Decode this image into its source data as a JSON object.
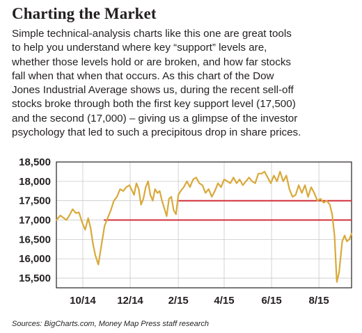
{
  "heading": "Charting the Market",
  "paragraph_lines": [
    "Simple technical-analysis charts like this one are great tools",
    "to help you understand where key “support” levels are,",
    "whether those levels hold or are broken, and how far stocks",
    "fall when that when that occurs. As this chart of the Dow",
    "Jones Industrial Average shows us, during the recent sell-off",
    "stocks broke through both the first key support level (17,500)",
    "and the second (17,000) – giving us a glimpse of the investor",
    "psychology that led to such a precipitous drop in share prices."
  ],
  "source": "Sources: BigCharts.com, Money Map Press staff research",
  "colors": {
    "line": "#d9a93a",
    "support": "#d32f3a",
    "grid": "#c9c9c9",
    "text": "#231f20"
  },
  "chart_data": {
    "type": "line",
    "ylim": [
      15250,
      18500
    ],
    "xlim": [
      "2014-08-28",
      "2015-09-12"
    ],
    "yticks": [
      15500,
      16000,
      16500,
      17000,
      17500,
      18000,
      18500
    ],
    "ytick_labels": [
      "15,500",
      "16,000",
      "16,500",
      "17,000",
      "17,500",
      "18,000",
      "18,500"
    ],
    "xticks": [
      {
        "date": "2014-10-01",
        "label": "10/14"
      },
      {
        "date": "2014-12-01",
        "label": "12/14"
      },
      {
        "date": "2015-02-01",
        "label": "2/15"
      },
      {
        "date": "2015-04-01",
        "label": "4/15"
      },
      {
        "date": "2015-06-01",
        "label": "6/15"
      },
      {
        "date": "2015-08-01",
        "label": "8/15"
      }
    ],
    "grid": true,
    "support_levels": [
      {
        "value": 17500,
        "from": "2015-02-01"
      },
      {
        "value": 17000,
        "from": "2014-10-28"
      }
    ],
    "series": [
      {
        "x": [
          "2014-08-28",
          "2014-09-02",
          "2014-09-06",
          "2014-09-10",
          "2014-09-14",
          "2014-09-18",
          "2014-09-22",
          "2014-09-26",
          "2014-09-30",
          "2014-10-04",
          "2014-10-08",
          "2014-10-11",
          "2014-10-14",
          "2014-10-17",
          "2014-10-21",
          "2014-10-25",
          "2014-10-29",
          "2014-11-02",
          "2014-11-06",
          "2014-11-10",
          "2014-11-14",
          "2014-11-18",
          "2014-11-22",
          "2014-11-26",
          "2014-11-30",
          "2014-12-03",
          "2014-12-06",
          "2014-12-09",
          "2014-12-12",
          "2014-12-15",
          "2014-12-18",
          "2014-12-21",
          "2014-12-24",
          "2014-12-27",
          "2014-12-30",
          "2015-01-02",
          "2015-01-05",
          "2015-01-08",
          "2015-01-11",
          "2015-01-14",
          "2015-01-17",
          "2015-01-20",
          "2015-01-23",
          "2015-01-26",
          "2015-01-29",
          "2015-02-01",
          "2015-02-04",
          "2015-02-08",
          "2015-02-12",
          "2015-02-16",
          "2015-02-20",
          "2015-02-24",
          "2015-02-28",
          "2015-03-04",
          "2015-03-08",
          "2015-03-12",
          "2015-03-16",
          "2015-03-20",
          "2015-03-24",
          "2015-03-28",
          "2015-04-01",
          "2015-04-05",
          "2015-04-09",
          "2015-04-13",
          "2015-04-17",
          "2015-04-21",
          "2015-04-25",
          "2015-04-29",
          "2015-05-03",
          "2015-05-07",
          "2015-05-11",
          "2015-05-15",
          "2015-05-19",
          "2015-05-23",
          "2015-05-27",
          "2015-05-31",
          "2015-06-04",
          "2015-06-08",
          "2015-06-12",
          "2015-06-16",
          "2015-06-20",
          "2015-06-24",
          "2015-06-28",
          "2015-07-02",
          "2015-07-06",
          "2015-07-10",
          "2015-07-14",
          "2015-07-18",
          "2015-07-22",
          "2015-07-26",
          "2015-07-30",
          "2015-08-03",
          "2015-08-07",
          "2015-08-11",
          "2015-08-15",
          "2015-08-18",
          "2015-08-21",
          "2015-08-24",
          "2015-08-27",
          "2015-08-31",
          "2015-09-03",
          "2015-09-06",
          "2015-09-09",
          "2015-09-12"
        ],
        "values": [
          17000,
          17120,
          17060,
          17000,
          17130,
          17280,
          17180,
          17200,
          16950,
          16750,
          17050,
          16800,
          16400,
          16100,
          15850,
          16350,
          16850,
          17050,
          17250,
          17500,
          17600,
          17800,
          17750,
          17850,
          17900,
          17780,
          17650,
          17950,
          17800,
          17400,
          17550,
          17850,
          18000,
          17650,
          17500,
          17800,
          17700,
          17750,
          17500,
          17300,
          17100,
          17550,
          17600,
          17250,
          17150,
          17650,
          17750,
          17850,
          18000,
          17850,
          18050,
          18100,
          17950,
          17900,
          17700,
          17800,
          17600,
          17750,
          17950,
          17850,
          18050,
          18000,
          17950,
          18100,
          17950,
          18050,
          17900,
          18000,
          18100,
          18000,
          17950,
          18200,
          18200,
          18250,
          18100,
          17950,
          18150,
          18000,
          18250,
          18000,
          18150,
          17800,
          17600,
          17650,
          17900,
          17700,
          17900,
          17600,
          17850,
          17700,
          17500,
          17550,
          17450,
          17500,
          17400,
          17150,
          16600,
          15400,
          15650,
          16450,
          16600,
          16450,
          16500,
          16650
        ]
      }
    ]
  }
}
